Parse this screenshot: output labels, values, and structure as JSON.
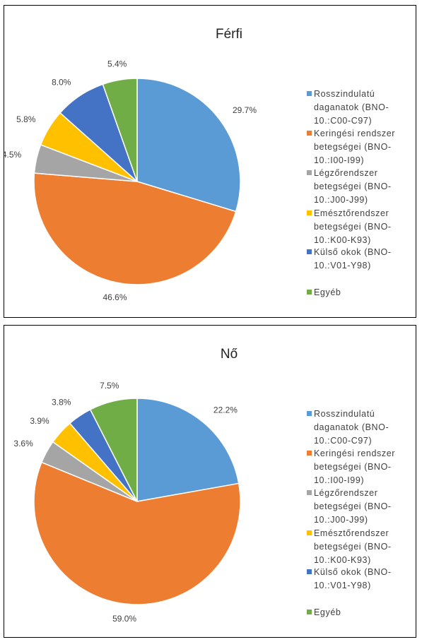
{
  "chart_data": [
    {
      "type": "pie",
      "title": "Férfi",
      "categories": [
        "Rosszindulatú daganatok (BNO-10.:C00-C97)",
        "Keringési rendszer betegségei (BNO-10.:I00-I99)",
        "Légzőrendszer betegségei (BNO-10.:J00-J99)",
        "Emésztőrendszer betegségei (BNO-10.:K00-K93)",
        "Külső okok (BNO-10.:V01-Y98)",
        "Egyéb"
      ],
      "values": [
        29.7,
        46.6,
        4.5,
        5.8,
        8.0,
        5.4
      ],
      "value_labels": [
        "29.7%",
        "46.6%",
        "4.5%",
        "5.8%",
        "8.0%",
        "5.4%"
      ],
      "colors": [
        "#5b9bd5",
        "#ed7d31",
        "#a5a5a5",
        "#ffc000",
        "#4472c4",
        "#70ad47"
      ],
      "legend": "right"
    },
    {
      "type": "pie",
      "title": "Nő",
      "categories": [
        "Rosszindulatú daganatok (BNO-10.:C00-C97)",
        "Keringési rendszer betegségei (BNO-10.:I00-I99)",
        "Légzőrendszer betegségei (BNO-10.:J00-J99)",
        "Emésztőrendszer betegségei (BNO-10.:K00-K93)",
        "Külső okok (BNO-10.:V01-Y98)",
        "Egyéb"
      ],
      "values": [
        22.2,
        59.0,
        3.6,
        3.9,
        3.8,
        7.5
      ],
      "value_labels": [
        "22.2%",
        "59.0%",
        "3.6%",
        "3.9%",
        "3.8%",
        "7.5%"
      ],
      "colors": [
        "#5b9bd5",
        "#ed7d31",
        "#a5a5a5",
        "#ffc000",
        "#4472c4",
        "#70ad47"
      ],
      "legend": "right"
    }
  ]
}
